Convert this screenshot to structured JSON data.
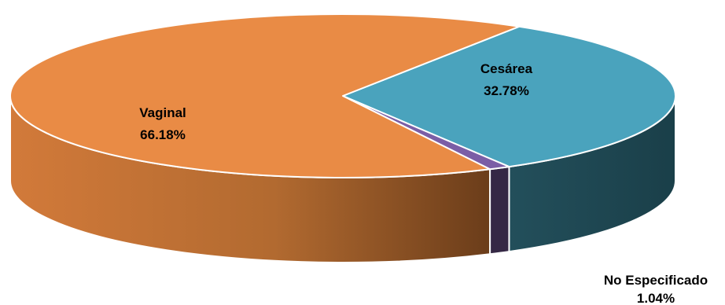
{
  "chart_data": {
    "type": "pie",
    "title": "",
    "style": "3d-tilted",
    "slices": [
      {
        "label": "Cesárea",
        "value": 32.78,
        "value_text": "32.78%",
        "color": "#4aa3bd",
        "side_color": "#1f4a55"
      },
      {
        "label": "No Especificado",
        "value": 1.04,
        "value_text": "1.04%",
        "color": "#7b5ea6",
        "side_color": "#352845"
      },
      {
        "label": "Vaginal",
        "value": 66.18,
        "value_text": "66.18%",
        "color": "#e98b45",
        "side_color": "#b8682f"
      }
    ],
    "data_labels": true,
    "legend": "none"
  }
}
